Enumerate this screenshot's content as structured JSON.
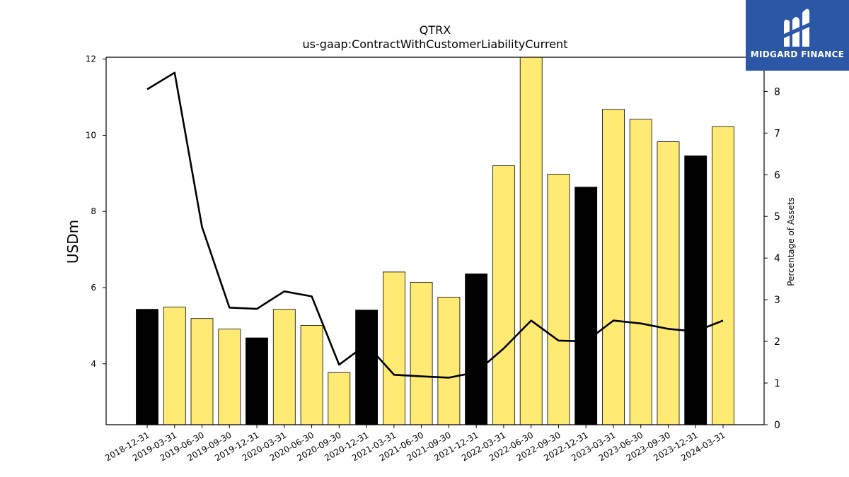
{
  "chart_data": {
    "type": "bar",
    "title": "QTRX",
    "subtitle": "us-gaap:ContractWithCustomerLiabilityCurrent",
    "ylabel": "USDm",
    "ylabel_right": "Percentage of Assets",
    "ylim": [
      2.4,
      12.05
    ],
    "ylim_right": [
      0,
      8.82
    ],
    "yticks": [
      4,
      6,
      8,
      10,
      12
    ],
    "yticks_right": [
      0,
      1,
      2,
      3,
      4,
      5,
      6,
      7,
      8
    ],
    "categories": [
      "2018-12-31",
      "2019-03-31",
      "2019-06-30",
      "2019-09-30",
      "2019-12-31",
      "2020-03-31",
      "2020-06-30",
      "2020-09-30",
      "2020-12-31",
      "2021-03-31",
      "2021-06-30",
      "2021-09-30",
      "2021-12-31",
      "2022-03-31",
      "2022-06-30",
      "2022-09-30",
      "2022-12-31",
      "2023-03-31",
      "2023-06-30",
      "2023-09-30",
      "2023-12-31",
      "2024-03-31"
    ],
    "series": [
      {
        "kind": "bar",
        "axis": "left",
        "values": [
          5.43,
          5.49,
          5.19,
          4.91,
          4.68,
          5.43,
          5.01,
          3.77,
          5.41,
          6.41,
          6.14,
          5.75,
          6.36,
          9.2,
          12.1,
          8.98,
          8.64,
          10.68,
          10.42,
          9.83,
          9.46,
          10.23
        ],
        "year_end": [
          true,
          false,
          false,
          false,
          true,
          false,
          false,
          false,
          true,
          false,
          false,
          false,
          true,
          false,
          false,
          false,
          true,
          false,
          false,
          false,
          true,
          false
        ]
      },
      {
        "kind": "line",
        "axis": "right",
        "values": [
          8.05,
          8.45,
          4.75,
          2.81,
          2.78,
          3.2,
          3.08,
          1.44,
          1.93,
          1.2,
          1.16,
          1.13,
          1.26,
          1.83,
          2.5,
          2.02,
          2.0,
          2.5,
          2.43,
          2.3,
          2.24,
          2.5
        ]
      }
    ],
    "colors": {
      "bar_quarter": "#ffeb73",
      "bar_year_end": "#000000",
      "line": "#000000"
    },
    "legend": "none",
    "grid": false
  },
  "logo": {
    "text": "MIDGARD FINANCE",
    "icon": "midgard-logo-icon"
  }
}
